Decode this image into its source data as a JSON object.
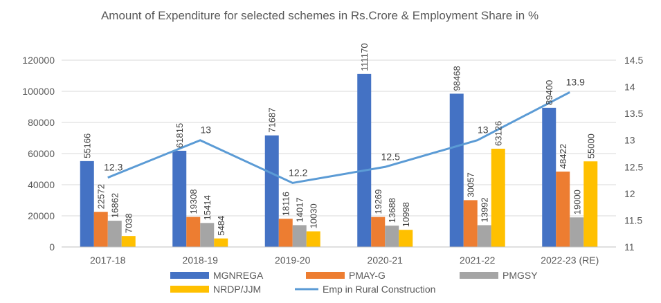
{
  "chart_data": {
    "type": "bar",
    "title": "Amount of Expenditure for selected schemes in Rs.Crore & Employment Share in %",
    "categories": [
      "2017-18",
      "2018-19",
      "2019-20",
      "2020-21",
      "2021-22",
      "2022-23 (RE)"
    ],
    "series": [
      {
        "name": "MGNREGA",
        "type": "bar",
        "axis": "left",
        "color": "#4472C4",
        "values": [
          55166,
          61815,
          71687,
          111170,
          98468,
          89400
        ]
      },
      {
        "name": "PMAY-G",
        "type": "bar",
        "axis": "left",
        "color": "#ED7D31",
        "values": [
          22572,
          19308,
          18116,
          19269,
          30057,
          48422
        ]
      },
      {
        "name": "PMGSY",
        "type": "bar",
        "axis": "left",
        "color": "#A5A5A5",
        "values": [
          16862,
          15414,
          14017,
          13688,
          13992,
          19000
        ]
      },
      {
        "name": "NRDP/JJM",
        "type": "bar",
        "axis": "left",
        "color": "#FFC000",
        "values": [
          7038,
          5484,
          10030,
          10998,
          63126,
          55000
        ]
      },
      {
        "name": "Emp in Rural Construction",
        "type": "line",
        "axis": "right",
        "color": "#5B9BD5",
        "values": [
          12.3,
          13,
          12.2,
          12.5,
          13,
          13.9
        ]
      }
    ],
    "y_left": {
      "min": 0,
      "max": 120000,
      "ticks": [
        "0",
        "20000",
        "40000",
        "60000",
        "80000",
        "100000",
        "120000"
      ]
    },
    "y_right": {
      "min": 11,
      "max": 14.5,
      "ticks": [
        "11",
        "11.5",
        "12",
        "12.5",
        "13",
        "13.5",
        "14",
        "14.5"
      ]
    },
    "grid": true,
    "legend_position": "bottom"
  }
}
